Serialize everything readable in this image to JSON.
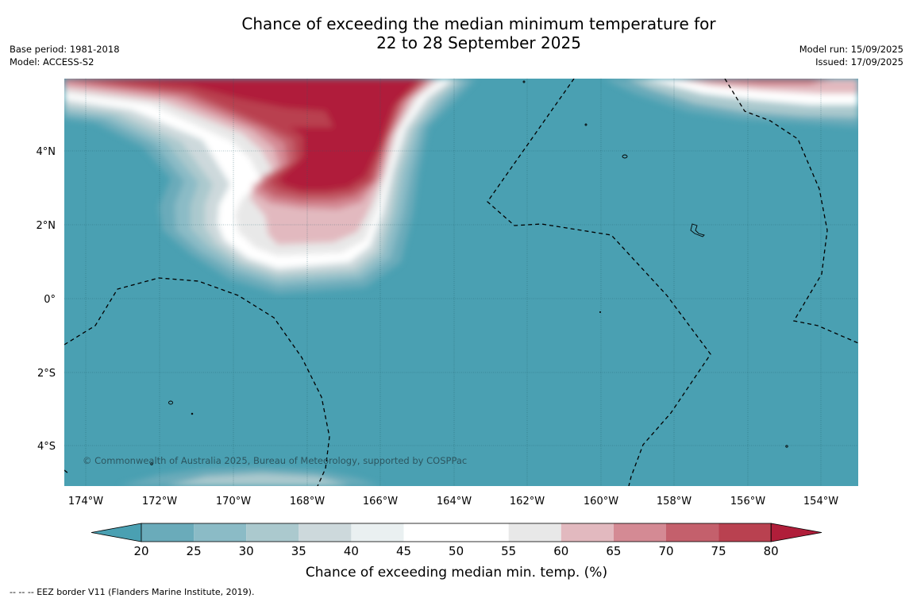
{
  "title": {
    "line1": "Chance of exceeding the median minimum temperature for",
    "line2": "22 to 28 September 2025"
  },
  "meta_left": {
    "base_period": "Base period: 1981-2018",
    "model": "Model: ACCESS-S2"
  },
  "meta_right": {
    "model_run": "Model run: 15/09/2025",
    "issued": "Issued: 17/09/2025"
  },
  "map": {
    "copyright": "© Commonwealth of Australia 2025, Bureau of Meteorology, supported by COSPPac",
    "lat_labels": [
      "4°N",
      "2°N",
      "0°",
      "2°S",
      "4°S"
    ],
    "lon_labels": [
      "174°W",
      "172°W",
      "170°W",
      "168°W",
      "166°W",
      "164°W",
      "162°W",
      "160°W",
      "158°W",
      "156°W",
      "154°W"
    ],
    "background_color": "#4aa0b2"
  },
  "colorbar": {
    "ticks": [
      "20",
      "25",
      "30",
      "35",
      "40",
      "45",
      "50",
      "55",
      "60",
      "65",
      "70",
      "75",
      "80"
    ],
    "colors": [
      "#6aabba",
      "#8bbbc6",
      "#abc9ce",
      "#cdd9dc",
      "#eaf0f1",
      "#ffffff",
      "#ffffff",
      "#e8e8e8",
      "#e2b9bf",
      "#d48a94",
      "#c4606c",
      "#b94150"
    ],
    "low_color": "#4aa0b2",
    "high_color": "#b01e3a",
    "label": "Chance of exceeding median min. temp. (%)"
  },
  "footer": {
    "legend": "--  --  -- EEZ border V11 (Flanders Marine Institute, 2019)."
  }
}
